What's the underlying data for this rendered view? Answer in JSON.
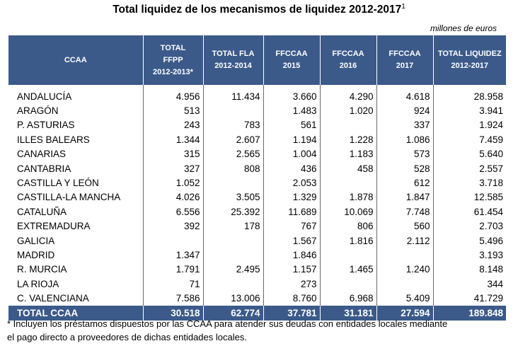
{
  "title": "Total liquidez de los mecanismos de liquidez 2012-2017",
  "title_sup": "1",
  "units": "millones de euros",
  "headers": [
    {
      "line1": "CCAA",
      "line2": "",
      "line3": ""
    },
    {
      "line1": "TOTAL",
      "line2": "FFPP",
      "line3": "2012-2013*"
    },
    {
      "line1": "TOTAL FLA",
      "line2": "2012-2014",
      "line3": ""
    },
    {
      "line1": "FFCCAA",
      "line2": "2015",
      "line3": ""
    },
    {
      "line1": "FFCCAA",
      "line2": "2016",
      "line3": ""
    },
    {
      "line1": "FFCCAA",
      "line2": "2017",
      "line3": ""
    },
    {
      "line1": "TOTAL LIQUIDEZ",
      "line2": "2012-2017",
      "line3": ""
    }
  ],
  "rows": [
    [
      "ANDALUCÍA",
      "4.956",
      "11.434",
      "3.660",
      "4.290",
      "4.618",
      "28.958"
    ],
    [
      "ARAGÓN",
      "513",
      "",
      "1.483",
      "1.020",
      "924",
      "3.941"
    ],
    [
      "P. ASTURIAS",
      "243",
      "783",
      "561",
      "",
      "337",
      "1.924"
    ],
    [
      "ILLES BALEARS",
      "1.344",
      "2.607",
      "1.194",
      "1.228",
      "1.086",
      "7.459"
    ],
    [
      "CANARIAS",
      "315",
      "2.565",
      "1.004",
      "1.183",
      "573",
      "5.640"
    ],
    [
      "CANTABRIA",
      "327",
      "808",
      "436",
      "458",
      "528",
      "2.557"
    ],
    [
      "CASTILLA Y LEÓN",
      "1.052",
      "",
      "2.053",
      "",
      "612",
      "3.718"
    ],
    [
      "CASTILLA-LA MANCHA",
      "4.026",
      "3.505",
      "1.329",
      "1.878",
      "1.847",
      "12.585"
    ],
    [
      "CATALUÑA",
      "6.556",
      "25.392",
      "11.689",
      "10.069",
      "7.748",
      "61.454"
    ],
    [
      "EXTREMADURA",
      "392",
      "178",
      "767",
      "806",
      "560",
      "2.703"
    ],
    [
      "GALICIA",
      "",
      "",
      "1.567",
      "1.816",
      "2.112",
      "5.496"
    ],
    [
      "MADRID",
      "1.347",
      "",
      "1.846",
      "",
      "",
      "3.193"
    ],
    [
      "R. MURCIA",
      "1.791",
      "2.495",
      "1.157",
      "1.465",
      "1.240",
      "8.148"
    ],
    [
      "LA RIOJA",
      "71",
      "",
      "273",
      "",
      "",
      "344"
    ],
    [
      "C. VALENCIANA",
      "7.586",
      "13.006",
      "8.760",
      "6.968",
      "5.409",
      "41.729"
    ]
  ],
  "total": [
    "TOTAL CCAA",
    "30.518",
    "62.774",
    "37.781",
    "31.181",
    "27.594",
    "189.848"
  ],
  "note_line1": "* Incluyen los préstamos dispuestos por las CCAA para atender sus deudas con entidades locales mediante",
  "note_line2": "el pago directo a proveedores de dichas entidades locales.",
  "colors": {
    "header_bg": "#3b5a8a",
    "header_text": "#ffffff"
  }
}
